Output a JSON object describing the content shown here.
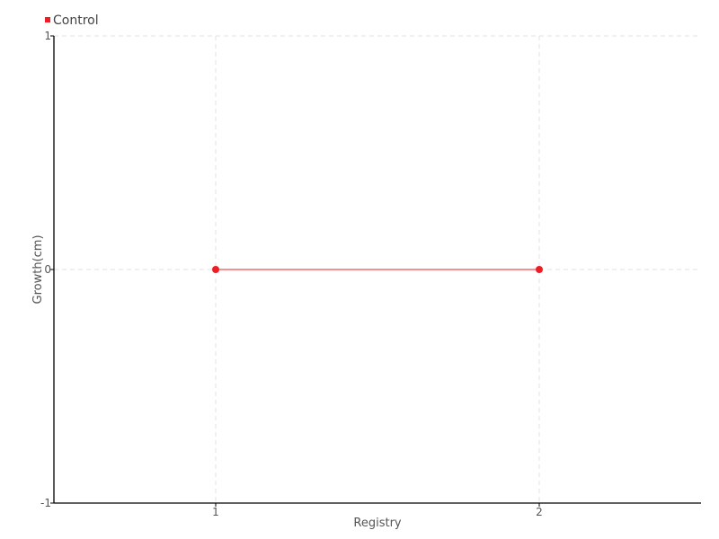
{
  "chart_data": {
    "type": "line",
    "title": "",
    "xlabel": "Registry",
    "ylabel": "Growth(cm)",
    "xlim": [
      0.5,
      2.5
    ],
    "ylim": [
      -1,
      1
    ],
    "x_ticks": [
      "1",
      "2"
    ],
    "y_ticks": [
      "1",
      "0",
      "-1"
    ],
    "grid": true,
    "legend_position": "top-left",
    "series": [
      {
        "name": "Control",
        "color": "#ee1c25",
        "x": [
          1,
          2
        ],
        "y": [
          0,
          0
        ]
      }
    ]
  }
}
